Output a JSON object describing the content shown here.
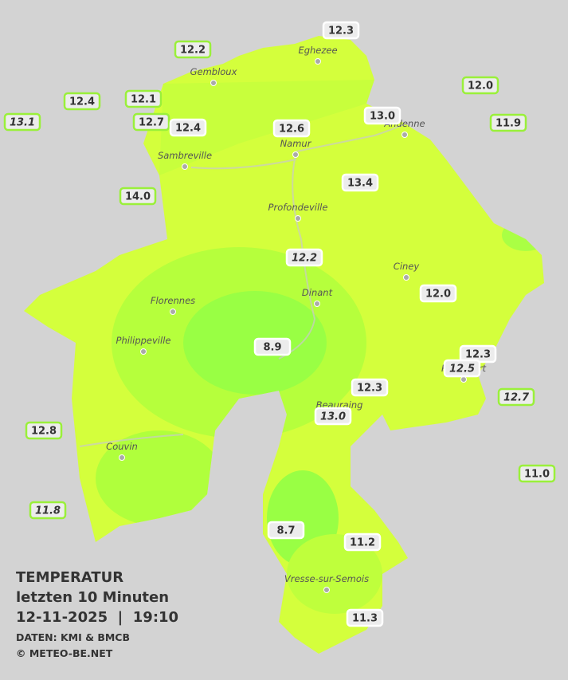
{
  "legend": {
    "title": "TEMPERATUR",
    "subtitle": "letzten 10 Minuten",
    "datetime": "12-11-2025  |  19:10",
    "source": "DATEN: KMI & BMCB",
    "copyright": "© METEO-BE.NET"
  },
  "cities": [
    "Eghezee",
    "Gembloux",
    "Andenne",
    "Namur",
    "Sambreville",
    "Profondeville",
    "Ciney",
    "Dinant",
    "Florennes",
    "Philippeville",
    "Rochefort",
    "Beauraing",
    "Couvin",
    "Vresse-sur-Semois"
  ],
  "stations": [
    "12.3",
    "12.2",
    "12.4",
    "12.1",
    "13.1",
    "12.7",
    "12.4",
    "12.6",
    "13.0",
    "12.0",
    "11.9",
    "14.0",
    "13.4",
    "12.2",
    "12.0",
    "8.9",
    "12.3",
    "12.5",
    "12.7",
    "12.3",
    "13.0",
    "12.8",
    "11.0",
    "11.8",
    "8.7",
    "11.2",
    "11.3"
  ]
}
